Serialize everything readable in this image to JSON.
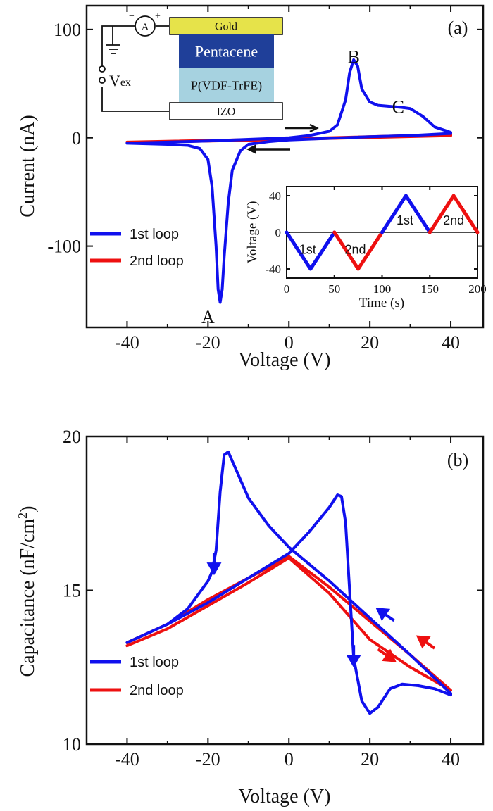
{
  "colors": {
    "first_loop": "#1010ee",
    "second_loop": "#ee1010",
    "gold": "#e6e34a",
    "pentacene": "#1f3f99",
    "pvdf": "#a6d2e0",
    "izo": "#ffffff"
  },
  "chart_data": [
    {
      "type": "line",
      "panel_label": "(a)",
      "xlabel": "Voltage (V)",
      "ylabel": "Current (nA)",
      "xlim": [
        -50,
        48
      ],
      "ylim": [
        -175,
        122
      ],
      "xticks": [
        -40,
        -20,
        0,
        20,
        40
      ],
      "yticks": [
        100,
        0,
        -100
      ],
      "grid": false,
      "legend_position": "bottom-left",
      "annotations": [
        {
          "text": "A",
          "x": -20,
          "y": -158
        },
        {
          "text": "B",
          "x": 16,
          "y": 82
        },
        {
          "text": "C",
          "x": 27,
          "y": 36
        }
      ],
      "series": [
        {
          "name": "1st loop",
          "color": "#1010ee",
          "x": [
            -40,
            -30,
            -20,
            -10,
            0,
            5,
            10,
            12,
            14,
            15,
            16,
            17,
            18,
            20,
            22,
            25,
            28,
            30,
            33,
            36,
            40,
            40,
            30,
            20,
            10,
            0,
            -5,
            -10,
            -12,
            -14,
            -15,
            -16,
            -16.5,
            -17,
            -17.5,
            -18,
            -19,
            -20,
            -22,
            -25,
            -30,
            -40
          ],
          "y": [
            -5,
            -4,
            -3,
            -1.5,
            0,
            2,
            6,
            12,
            35,
            60,
            72,
            66,
            45,
            33,
            30,
            29,
            28,
            27,
            20,
            10,
            5,
            4,
            2,
            1,
            -0.5,
            -2,
            -3.5,
            -6,
            -12,
            -30,
            -60,
            -110,
            -140,
            -152,
            -140,
            -100,
            -45,
            -20,
            -10,
            -7,
            -6,
            -5
          ]
        },
        {
          "name": "2nd loop",
          "color": "#ee1010",
          "x": [
            -40,
            0,
            40,
            40,
            0,
            -40
          ],
          "y": [
            -4,
            -1,
            3,
            2,
            -1.5,
            -4.5
          ]
        }
      ],
      "inset_schematic": {
        "layers": [
          "Gold",
          "Pentacene",
          "P(VDF-TrFE)",
          "IZO"
        ],
        "ammeter": "A",
        "minus": "−",
        "plus": "+",
        "source_label": "V",
        "source_subscript": "ex"
      },
      "inset_chart": {
        "type": "line",
        "xlabel": "Time (s)",
        "ylabel": "Voltage (V)",
        "xlim": [
          0,
          200
        ],
        "ylim": [
          -50,
          50
        ],
        "xticks": [
          0,
          50,
          100,
          150,
          200
        ],
        "yticks": [
          40,
          0,
          -40
        ],
        "segment_labels": [
          {
            "text": "1st",
            "x": 22,
            "y": -18
          },
          {
            "text": "2nd",
            "x": 72,
            "y": -18
          },
          {
            "text": "1st",
            "x": 124,
            "y": 14
          },
          {
            "text": "2nd",
            "x": 175,
            "y": 14
          }
        ],
        "series": [
          {
            "name": "1st",
            "color": "#1010ee",
            "x": [
              0,
              25,
              50
            ],
            "y": [
              0,
              -40,
              0
            ]
          },
          {
            "name": "2nd",
            "color": "#ee1010",
            "x": [
              50,
              75,
              100
            ],
            "y": [
              0,
              -40,
              0
            ]
          },
          {
            "name": "1st",
            "color": "#1010ee",
            "x": [
              100,
              125,
              150
            ],
            "y": [
              0,
              40,
              0
            ]
          },
          {
            "name": "2nd",
            "color": "#ee1010",
            "x": [
              150,
              175,
              200
            ],
            "y": [
              0,
              40,
              0
            ]
          }
        ]
      }
    },
    {
      "type": "line",
      "panel_label": "(b)",
      "xlabel": "Voltage (V)",
      "ylabel": "Capacitance (nF/cm",
      "ylabel_sup": "2",
      "ylabel_end": ")",
      "xlim": [
        -50,
        48
      ],
      "ylim": [
        10,
        20
      ],
      "xticks": [
        -40,
        -20,
        0,
        20,
        40
      ],
      "yticks": [
        20,
        15,
        10
      ],
      "grid": false,
      "legend_position": "bottom-left",
      "series": [
        {
          "name": "1st loop",
          "color": "#1010ee",
          "x": [
            -40,
            -30,
            -20,
            -10,
            0,
            5,
            10,
            12,
            13,
            14,
            15,
            16,
            18,
            20,
            22,
            25,
            28,
            32,
            36,
            40,
            40,
            30,
            20,
            10,
            0,
            -5,
            -10,
            -13,
            -15,
            -16,
            -17,
            -18,
            -19,
            -20,
            -25,
            -30,
            -40
          ],
          "y": [
            13.3,
            13.9,
            14.6,
            15.4,
            16.2,
            16.9,
            17.7,
            18.1,
            18.05,
            17.2,
            15.0,
            12.8,
            11.4,
            11.0,
            11.2,
            11.8,
            11.95,
            11.9,
            11.8,
            11.6,
            11.65,
            12.9,
            14.1,
            15.3,
            16.4,
            17.1,
            18.0,
            18.9,
            19.5,
            19.4,
            18.2,
            16.3,
            15.6,
            15.3,
            14.4,
            13.9,
            13.3
          ]
        },
        {
          "name": "2nd loop",
          "color": "#ee1010",
          "x": [
            -40,
            -30,
            -20,
            -10,
            0,
            10,
            20,
            30,
            40,
            40,
            30,
            20,
            10,
            0,
            -10,
            -20,
            -30,
            -40
          ],
          "y": [
            13.2,
            13.75,
            14.5,
            15.25,
            16.05,
            14.9,
            13.4,
            12.5,
            11.75,
            11.75,
            12.9,
            14.0,
            15.1,
            16.1,
            15.4,
            14.7,
            13.9,
            13.3
          ]
        }
      ],
      "arrows": [
        {
          "color": "#1010ee",
          "x": -18.5,
          "y": 15.9,
          "dir": "down"
        },
        {
          "color": "#1010ee",
          "x": 16,
          "y": 12.9,
          "dir": "down"
        },
        {
          "color": "#1010ee",
          "x": 24,
          "y": 14.2,
          "dir": "up-left"
        },
        {
          "color": "#ee1010",
          "x": 24,
          "y": 12.9,
          "dir": "down-right"
        },
        {
          "color": "#ee1010",
          "x": 34,
          "y": 13.3,
          "dir": "up-left"
        }
      ]
    }
  ]
}
